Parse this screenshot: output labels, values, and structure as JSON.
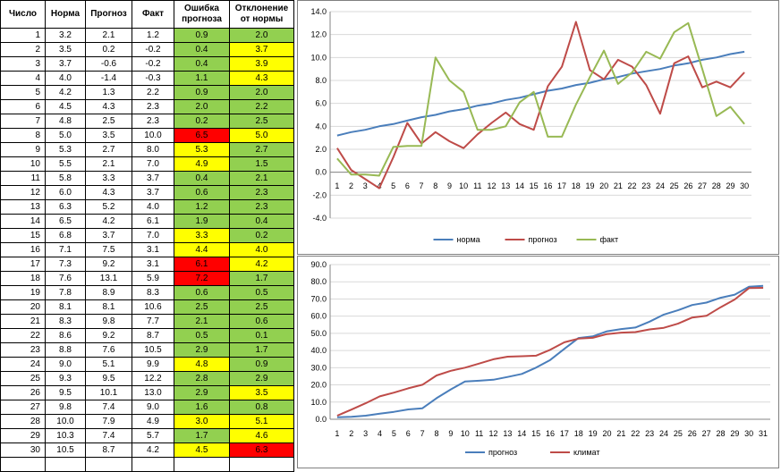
{
  "table": {
    "headers": [
      "Число",
      "Норма",
      "Прогноз",
      "Факт",
      "Ошибка прогноза",
      "Отклонение от нормы"
    ],
    "rows": [
      {
        "day": "1",
        "norm": "3.2",
        "forecast": "2.1",
        "fact": "1.2",
        "err": "0.9",
        "err_color": "#92d050",
        "dev": "2.0",
        "dev_color": "#92d050"
      },
      {
        "day": "2",
        "norm": "3.5",
        "forecast": "0.2",
        "fact": "-0.2",
        "err": "0.4",
        "err_color": "#92d050",
        "dev": "3.7",
        "dev_color": "#ffff00"
      },
      {
        "day": "3",
        "norm": "3.7",
        "forecast": "-0.6",
        "fact": "-0.2",
        "err": "0.4",
        "err_color": "#92d050",
        "dev": "3.9",
        "dev_color": "#ffff00"
      },
      {
        "day": "4",
        "norm": "4.0",
        "forecast": "-1.4",
        "fact": "-0.3",
        "err": "1.1",
        "err_color": "#92d050",
        "dev": "4.3",
        "dev_color": "#ffff00"
      },
      {
        "day": "5",
        "norm": "4.2",
        "forecast": "1.3",
        "fact": "2.2",
        "err": "0.9",
        "err_color": "#92d050",
        "dev": "2.0",
        "dev_color": "#92d050"
      },
      {
        "day": "6",
        "norm": "4.5",
        "forecast": "4.3",
        "fact": "2.3",
        "err": "2.0",
        "err_color": "#92d050",
        "dev": "2.2",
        "dev_color": "#92d050"
      },
      {
        "day": "7",
        "norm": "4.8",
        "forecast": "2.5",
        "fact": "2.3",
        "err": "0.2",
        "err_color": "#92d050",
        "dev": "2.5",
        "dev_color": "#92d050"
      },
      {
        "day": "8",
        "norm": "5.0",
        "forecast": "3.5",
        "fact": "10.0",
        "err": "6.5",
        "err_color": "#ff0000",
        "dev": "5.0",
        "dev_color": "#ffff00"
      },
      {
        "day": "9",
        "norm": "5.3",
        "forecast": "2.7",
        "fact": "8.0",
        "err": "5.3",
        "err_color": "#ffff00",
        "dev": "2.7",
        "dev_color": "#92d050"
      },
      {
        "day": "10",
        "norm": "5.5",
        "forecast": "2.1",
        "fact": "7.0",
        "err": "4.9",
        "err_color": "#ffff00",
        "dev": "1.5",
        "dev_color": "#92d050"
      },
      {
        "day": "11",
        "norm": "5.8",
        "forecast": "3.3",
        "fact": "3.7",
        "err": "0.4",
        "err_color": "#92d050",
        "dev": "2.1",
        "dev_color": "#92d050"
      },
      {
        "day": "12",
        "norm": "6.0",
        "forecast": "4.3",
        "fact": "3.7",
        "err": "0.6",
        "err_color": "#92d050",
        "dev": "2.3",
        "dev_color": "#92d050"
      },
      {
        "day": "13",
        "norm": "6.3",
        "forecast": "5.2",
        "fact": "4.0",
        "err": "1.2",
        "err_color": "#92d050",
        "dev": "2.3",
        "dev_color": "#92d050"
      },
      {
        "day": "14",
        "norm": "6.5",
        "forecast": "4.2",
        "fact": "6.1",
        "err": "1.9",
        "err_color": "#92d050",
        "dev": "0.4",
        "dev_color": "#92d050"
      },
      {
        "day": "15",
        "norm": "6.8",
        "forecast": "3.7",
        "fact": "7.0",
        "err": "3.3",
        "err_color": "#ffff00",
        "dev": "0.2",
        "dev_color": "#92d050"
      },
      {
        "day": "16",
        "norm": "7.1",
        "forecast": "7.5",
        "fact": "3.1",
        "err": "4.4",
        "err_color": "#ffff00",
        "dev": "4.0",
        "dev_color": "#ffff00"
      },
      {
        "day": "17",
        "norm": "7.3",
        "forecast": "9.2",
        "fact": "3.1",
        "err": "6.1",
        "err_color": "#ff0000",
        "dev": "4.2",
        "dev_color": "#ffff00"
      },
      {
        "day": "18",
        "norm": "7.6",
        "forecast": "13.1",
        "fact": "5.9",
        "err": "7.2",
        "err_color": "#ff0000",
        "dev": "1.7",
        "dev_color": "#92d050"
      },
      {
        "day": "19",
        "norm": "7.8",
        "forecast": "8.9",
        "fact": "8.3",
        "err": "0.6",
        "err_color": "#92d050",
        "dev": "0.5",
        "dev_color": "#92d050"
      },
      {
        "day": "20",
        "norm": "8.1",
        "forecast": "8.1",
        "fact": "10.6",
        "err": "2.5",
        "err_color": "#92d050",
        "dev": "2.5",
        "dev_color": "#92d050"
      },
      {
        "day": "21",
        "norm": "8.3",
        "forecast": "9.8",
        "fact": "7.7",
        "err": "2.1",
        "err_color": "#92d050",
        "dev": "0.6",
        "dev_color": "#92d050"
      },
      {
        "day": "22",
        "norm": "8.6",
        "forecast": "9.2",
        "fact": "8.7",
        "err": "0.5",
        "err_color": "#92d050",
        "dev": "0.1",
        "dev_color": "#92d050"
      },
      {
        "day": "23",
        "norm": "8.8",
        "forecast": "7.6",
        "fact": "10.5",
        "err": "2.9",
        "err_color": "#92d050",
        "dev": "1.7",
        "dev_color": "#92d050"
      },
      {
        "day": "24",
        "norm": "9.0",
        "forecast": "5.1",
        "fact": "9.9",
        "err": "4.8",
        "err_color": "#ffff00",
        "dev": "0.9",
        "dev_color": "#92d050"
      },
      {
        "day": "25",
        "norm": "9.3",
        "forecast": "9.5",
        "fact": "12.2",
        "err": "2.8",
        "err_color": "#92d050",
        "dev": "2.9",
        "dev_color": "#92d050"
      },
      {
        "day": "26",
        "norm": "9.5",
        "forecast": "10.1",
        "fact": "13.0",
        "err": "2.9",
        "err_color": "#92d050",
        "dev": "3.5",
        "dev_color": "#ffff00"
      },
      {
        "day": "27",
        "norm": "9.8",
        "forecast": "7.4",
        "fact": "9.0",
        "err": "1.6",
        "err_color": "#92d050",
        "dev": "0.8",
        "dev_color": "#92d050"
      },
      {
        "day": "28",
        "norm": "10.0",
        "forecast": "7.9",
        "fact": "4.9",
        "err": "3.0",
        "err_color": "#ffff00",
        "dev": "5.1",
        "dev_color": "#ffff00"
      },
      {
        "day": "29",
        "norm": "10.3",
        "forecast": "7.4",
        "fact": "5.7",
        "err": "1.7",
        "err_color": "#92d050",
        "dev": "4.6",
        "dev_color": "#ffff00"
      },
      {
        "day": "30",
        "norm": "10.5",
        "forecast": "8.7",
        "fact": "4.2",
        "err": "4.5",
        "err_color": "#ffff00",
        "dev": "6.3",
        "dev_color": "#ff0000"
      }
    ]
  },
  "chart_data": [
    {
      "type": "line",
      "x": [
        1,
        2,
        3,
        4,
        5,
        6,
        7,
        8,
        9,
        10,
        11,
        12,
        13,
        14,
        15,
        16,
        17,
        18,
        19,
        20,
        21,
        22,
        23,
        24,
        25,
        26,
        27,
        28,
        29,
        30
      ],
      "ylim": [
        -4,
        14
      ],
      "yticks": [
        "-4.0",
        "-2.0",
        "0.0",
        "2.0",
        "4.0",
        "6.0",
        "8.0",
        "10.0",
        "12.0",
        "14.0"
      ],
      "grid": true,
      "legend": "bottom",
      "series": [
        {
          "name": "норма",
          "color": "#4a7ebb",
          "values": [
            3.2,
            3.5,
            3.7,
            4.0,
            4.2,
            4.5,
            4.8,
            5.0,
            5.3,
            5.5,
            5.8,
            6.0,
            6.3,
            6.5,
            6.8,
            7.1,
            7.3,
            7.6,
            7.8,
            8.1,
            8.3,
            8.6,
            8.8,
            9.0,
            9.3,
            9.5,
            9.8,
            10.0,
            10.3,
            10.5
          ]
        },
        {
          "name": "прогноз",
          "color": "#be4b48",
          "values": [
            2.1,
            0.2,
            -0.6,
            -1.4,
            1.3,
            4.3,
            2.5,
            3.5,
            2.7,
            2.1,
            3.3,
            4.3,
            5.2,
            4.2,
            3.7,
            7.5,
            9.2,
            13.1,
            8.9,
            8.1,
            9.8,
            9.2,
            7.6,
            5.1,
            9.5,
            10.1,
            7.4,
            7.9,
            7.4,
            8.7
          ]
        },
        {
          "name": "факт",
          "color": "#98b954",
          "values": [
            1.2,
            -0.2,
            -0.2,
            -0.3,
            2.2,
            2.3,
            2.3,
            10.0,
            8.0,
            7.0,
            3.7,
            3.7,
            4.0,
            6.1,
            7.0,
            3.1,
            3.1,
            5.9,
            8.3,
            10.6,
            7.7,
            8.7,
            10.5,
            9.9,
            12.2,
            13.0,
            9.0,
            4.9,
            5.7,
            4.2
          ]
        }
      ]
    },
    {
      "type": "line",
      "x": [
        1,
        2,
        3,
        4,
        5,
        6,
        7,
        8,
        9,
        10,
        11,
        12,
        13,
        14,
        15,
        16,
        17,
        18,
        19,
        20,
        21,
        22,
        23,
        24,
        25,
        26,
        27,
        28,
        29,
        30,
        31
      ],
      "ylim": [
        0,
        90
      ],
      "yticks": [
        "0.0",
        "10.0",
        "20.0",
        "30.0",
        "40.0",
        "50.0",
        "60.0",
        "70.0",
        "80.0",
        "90.0"
      ],
      "grid": true,
      "legend": "bottom",
      "series": [
        {
          "name": "прогноз",
          "color": "#4a7ebb",
          "values": [
            1.2,
            1.4,
            2.1,
            3.2,
            4.3,
            5.7,
            6.4,
            12.3,
            17.4,
            22.0,
            22.4,
            23.0,
            24.6,
            26.4,
            30.0,
            34.5,
            41.0,
            47.3,
            48.2,
            51.2,
            52.5,
            53.4,
            56.8,
            60.9,
            63.4,
            66.5,
            67.9,
            70.7,
            72.5,
            77.1,
            77.6
          ]
        },
        {
          "name": "климат",
          "color": "#be4b48",
          "values": [
            2.1,
            5.6,
            9.3,
            13.3,
            15.5,
            18.0,
            20.1,
            25.5,
            28.2,
            30.0,
            32.4,
            34.9,
            36.4,
            36.7,
            37.0,
            40.4,
            44.8,
            46.9,
            47.4,
            49.6,
            50.4,
            50.7,
            52.3,
            53.2,
            55.6,
            59.2,
            60.2,
            65.2,
            69.7,
            76.3,
            76.5
          ]
        }
      ]
    }
  ]
}
